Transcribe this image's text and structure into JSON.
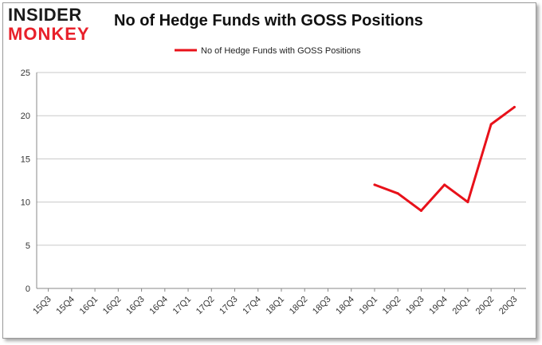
{
  "logo": {
    "line1": "INSIDER",
    "line2": "MONKEY"
  },
  "colors": {
    "series": "#e8111a",
    "grid": "#c8c8c8",
    "axis": "#888888",
    "logo_red": "#e8202a"
  },
  "chart_data": {
    "type": "line",
    "title": "No of Hedge Funds with GOSS Positions",
    "xlabel": "",
    "ylabel": "",
    "categories": [
      "15Q3",
      "15Q4",
      "16Q1",
      "16Q2",
      "16Q3",
      "16Q4",
      "17Q1",
      "17Q2",
      "17Q3",
      "17Q4",
      "18Q1",
      "18Q2",
      "18Q3",
      "18Q4",
      "19Q1",
      "19Q2",
      "19Q3",
      "19Q4",
      "20Q1",
      "20Q2",
      "20Q3"
    ],
    "series": [
      {
        "name": "No of Hedge Funds with GOSS Positions",
        "values": [
          null,
          null,
          null,
          null,
          null,
          null,
          null,
          null,
          null,
          null,
          null,
          null,
          null,
          null,
          12,
          11,
          9,
          12,
          10,
          19,
          21
        ]
      }
    ],
    "ylim": [
      0,
      25
    ],
    "yticks": [
      0,
      5,
      10,
      15,
      20,
      25
    ],
    "grid": true,
    "legend": "top-center"
  }
}
